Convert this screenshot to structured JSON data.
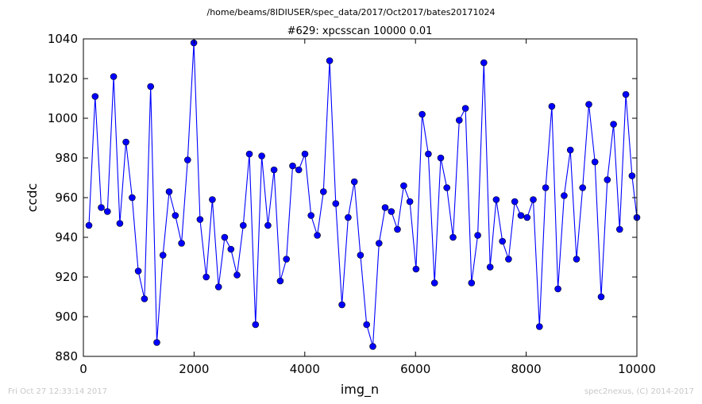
{
  "chart_data": {
    "type": "line",
    "suptitle": "/home/beams/8IDIUSER/spec_data/2017/Oct2017/bates20171024",
    "title": "#629: xpcsscan 10000 0.01",
    "xlabel": "img_n",
    "ylabel": "ccdc",
    "xlim": [
      0,
      10000
    ],
    "ylim": [
      880,
      1040
    ],
    "xticks": [
      0,
      2000,
      4000,
      6000,
      8000,
      10000
    ],
    "yticks": [
      880,
      900,
      920,
      940,
      960,
      980,
      1000,
      1020,
      1040
    ],
    "grid": false,
    "line_color": "#0000ff",
    "marker_color": "#0000ff",
    "series": [
      {
        "x": [
          100,
          212,
          323,
          435,
          546,
          658,
          769,
          881,
          992,
          1104,
          1215,
          1327,
          1438,
          1550,
          1661,
          1773,
          1884,
          1996,
          2107,
          2219,
          2330,
          2442,
          2553,
          2665,
          2776,
          2888,
          2999,
          3111,
          3222,
          3334,
          3445,
          3557,
          3668,
          3780,
          3891,
          4003,
          4114,
          4226,
          4337,
          4449,
          4560,
          4672,
          4783,
          4895,
          5006,
          5118,
          5229,
          5341,
          5452,
          5564,
          5675,
          5787,
          5898,
          6010,
          6121,
          6233,
          6344,
          6456,
          6567,
          6679,
          6790,
          6902,
          7013,
          7125,
          7236,
          7348,
          7459,
          7571,
          7682,
          7794,
          7905,
          8017,
          8128,
          8240,
          8351,
          8463,
          8574,
          8686,
          8797,
          8909,
          9020,
          9132,
          9243,
          9355,
          9466,
          9578,
          9689,
          9801,
          9912,
          10000
        ],
        "y": [
          946,
          1011,
          955,
          953,
          1021,
          947,
          988,
          960,
          923,
          909,
          1016,
          887,
          931,
          963,
          951,
          937,
          979,
          1038,
          949,
          920,
          959,
          915,
          940,
          934,
          921,
          946,
          982,
          896,
          981,
          946,
          974,
          918,
          929,
          976,
          974,
          982,
          951,
          941,
          963,
          1029,
          957,
          906,
          950,
          968,
          931,
          896,
          885,
          937,
          955,
          953,
          944,
          966,
          958,
          924,
          1002,
          982,
          917,
          980,
          965,
          940,
          999,
          1005,
          917,
          941,
          1028,
          925,
          959,
          938,
          929,
          958,
          951,
          950,
          959,
          895,
          965,
          1006,
          914,
          961,
          984,
          929,
          965,
          1007,
          978,
          910,
          969,
          997,
          944,
          1012,
          971,
          950
        ]
      }
    ]
  },
  "footer": {
    "timestamp": "Fri Oct 27 12:33:14 2017",
    "credit": "spec2nexus, (C) 2014-2017"
  }
}
